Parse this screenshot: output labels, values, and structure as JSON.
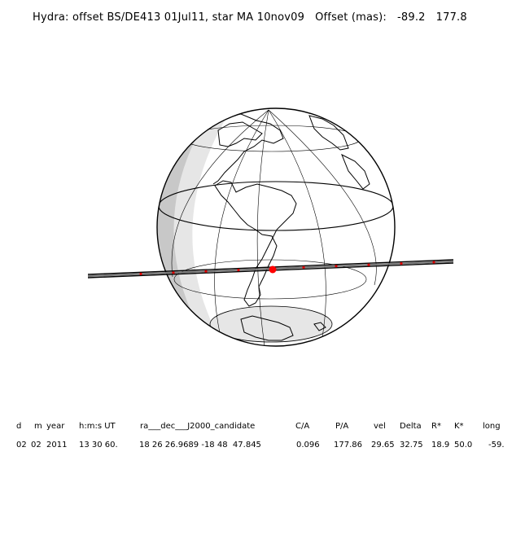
{
  "title": "Hydra: offset BS/DE413 01Jul11, star MA 10nov09   Offset (mas):   -89.2   177.8",
  "table": {
    "headers": [
      "d",
      "m",
      "year",
      "h:m:s UT",
      "ra___dec___J2000_candidate",
      "C/A",
      "P/A",
      "vel",
      "Delta",
      "R*",
      "K*",
      "long"
    ],
    "values": [
      "02",
      "02",
      "2011",
      "13 30 60.",
      "18 26 26.9689 -18 48  47.845",
      "0.096",
      "177.86",
      "29.65",
      "32.75",
      "18.9",
      "50.0",
      "-59."
    ]
  },
  "colors": {
    "night_shade": "#c8c8c8",
    "twilight_shade": "#e6e6e6",
    "track": "#000000",
    "track_dots": "#e00000",
    "center_dot": "#ff0000"
  }
}
